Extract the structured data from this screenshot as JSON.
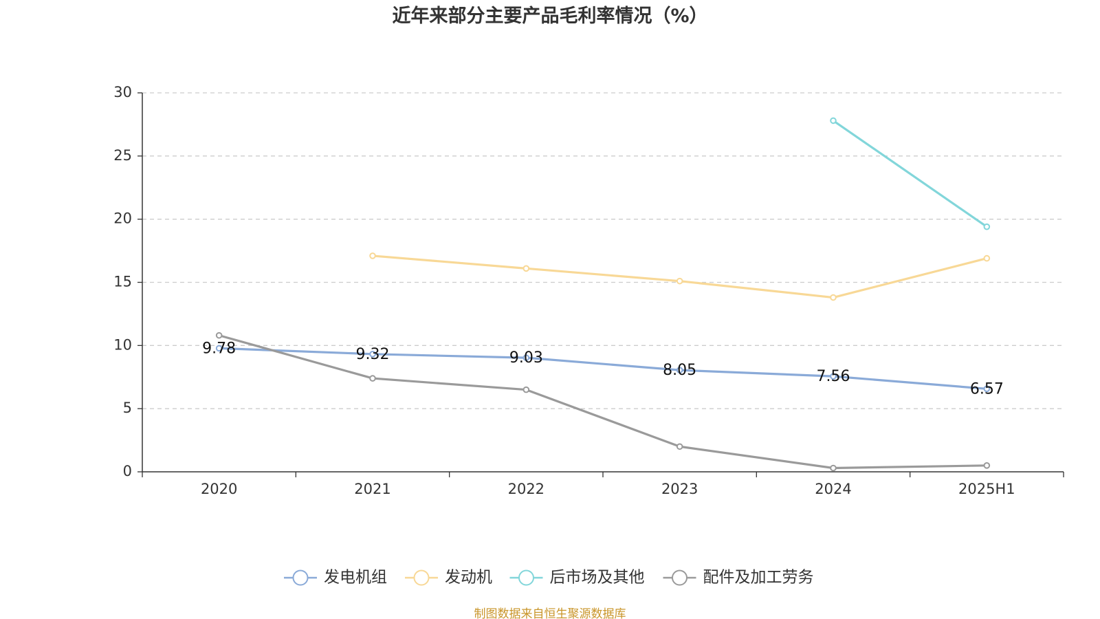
{
  "chart_data": {
    "type": "line",
    "title": "近年来部分主要产品毛利率情况（%）",
    "categories": [
      "2020",
      "2021",
      "2022",
      "2023",
      "2024",
      "2025H1"
    ],
    "ylim": [
      0,
      30
    ],
    "yticks": [
      0,
      5,
      10,
      15,
      20,
      25,
      30
    ],
    "grid": true,
    "legend_position": "bottom-center",
    "series": [
      {
        "name": "发电机组",
        "color": "#8aaad8",
        "values": [
          9.78,
          9.32,
          9.03,
          8.05,
          7.56,
          6.57
        ],
        "show_labels": true
      },
      {
        "name": "发动机",
        "color": "#f8d896",
        "values": [
          null,
          17.1,
          16.1,
          15.1,
          13.8,
          16.9
        ],
        "show_labels": false
      },
      {
        "name": "后市场及其他",
        "color": "#82d6da",
        "values": [
          null,
          null,
          null,
          null,
          27.8,
          19.4
        ],
        "show_labels": false
      },
      {
        "name": "配件及加工劳务",
        "color": "#9a9a9a",
        "values": [
          10.8,
          7.4,
          6.5,
          2.0,
          0.3,
          0.5
        ],
        "show_labels": false
      }
    ]
  },
  "source": "制图数据来自恒生聚源数据库"
}
